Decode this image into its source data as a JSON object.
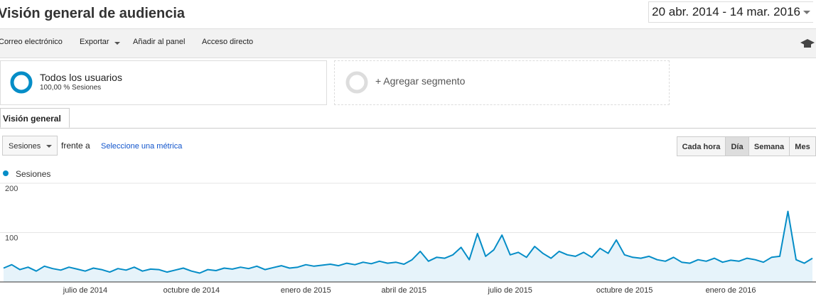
{
  "header": {
    "title": "Visión general de audiencia",
    "date_range": "20 abr. 2014 - 14 mar. 2016"
  },
  "toolbar": {
    "items": [
      "Correo electrónico",
      "Exportar",
      "Añadir al panel",
      "Acceso directo"
    ]
  },
  "segments": [
    {
      "name": "Todos los usuarios",
      "detail": "100,00 % Sesiones"
    },
    {
      "name": "+ Agregar segmento"
    }
  ],
  "tabs": [
    "Visión general"
  ],
  "controls": {
    "metric": "Sesiones",
    "versus": "frente a",
    "select_metric": "Seleccione una métrica",
    "granularity": [
      "Cada hora",
      "Día",
      "Semana",
      "Mes"
    ]
  },
  "chart_data": {
    "type": "line",
    "categories": [
      null,
      null,
      null,
      null,
      null,
      null,
      null,
      null,
      null,
      null,
      "julio de 2014",
      null,
      null,
      null,
      null,
      null,
      null,
      null,
      null,
      null,
      null,
      null,
      null,
      "octubre de 2014",
      null,
      null,
      null,
      null,
      null,
      null,
      null,
      null,
      null,
      null,
      null,
      null,
      null,
      "enero de 2015",
      null,
      null,
      null,
      null,
      null,
      null,
      null,
      null,
      null,
      null,
      null,
      "abril de 2015",
      null,
      null,
      null,
      null,
      null,
      null,
      null,
      null,
      null,
      null,
      null,
      null,
      "julio de 2015",
      null,
      null,
      null,
      null,
      null,
      null,
      null,
      null,
      null,
      null,
      null,
      null,
      null,
      "octubre de 2015",
      null,
      null,
      null,
      null,
      null,
      null,
      null,
      null,
      null,
      null,
      null,
      null,
      "enero de 2016",
      null,
      null,
      null,
      null,
      null,
      null,
      null,
      null,
      null,
      null
    ],
    "series": [
      {
        "name": "Sesiones",
        "color": "#058dc7",
        "values": [
          28,
          35,
          25,
          30,
          22,
          32,
          27,
          24,
          30,
          26,
          22,
          28,
          25,
          20,
          27,
          24,
          30,
          22,
          26,
          25,
          20,
          24,
          28,
          22,
          18,
          25,
          23,
          28,
          26,
          30,
          27,
          32,
          25,
          29,
          33,
          28,
          30,
          35,
          32,
          34,
          36,
          33,
          38,
          35,
          40,
          37,
          42,
          38,
          40,
          36,
          45,
          62,
          42,
          50,
          48,
          55,
          70,
          45,
          98,
          52,
          65,
          95,
          55,
          60,
          50,
          72,
          58,
          48,
          62,
          55,
          52,
          60,
          50,
          68,
          58,
          85,
          55,
          50,
          48,
          52,
          45,
          42,
          50,
          40,
          38,
          45,
          42,
          48,
          40,
          44,
          42,
          48,
          45,
          40,
          50,
          52,
          143,
          45,
          38,
          48
        ]
      }
    ],
    "ylim": [
      0,
      200
    ],
    "yticks": [
      100,
      200
    ],
    "grid": true,
    "area_color": "#e6f3fa"
  }
}
